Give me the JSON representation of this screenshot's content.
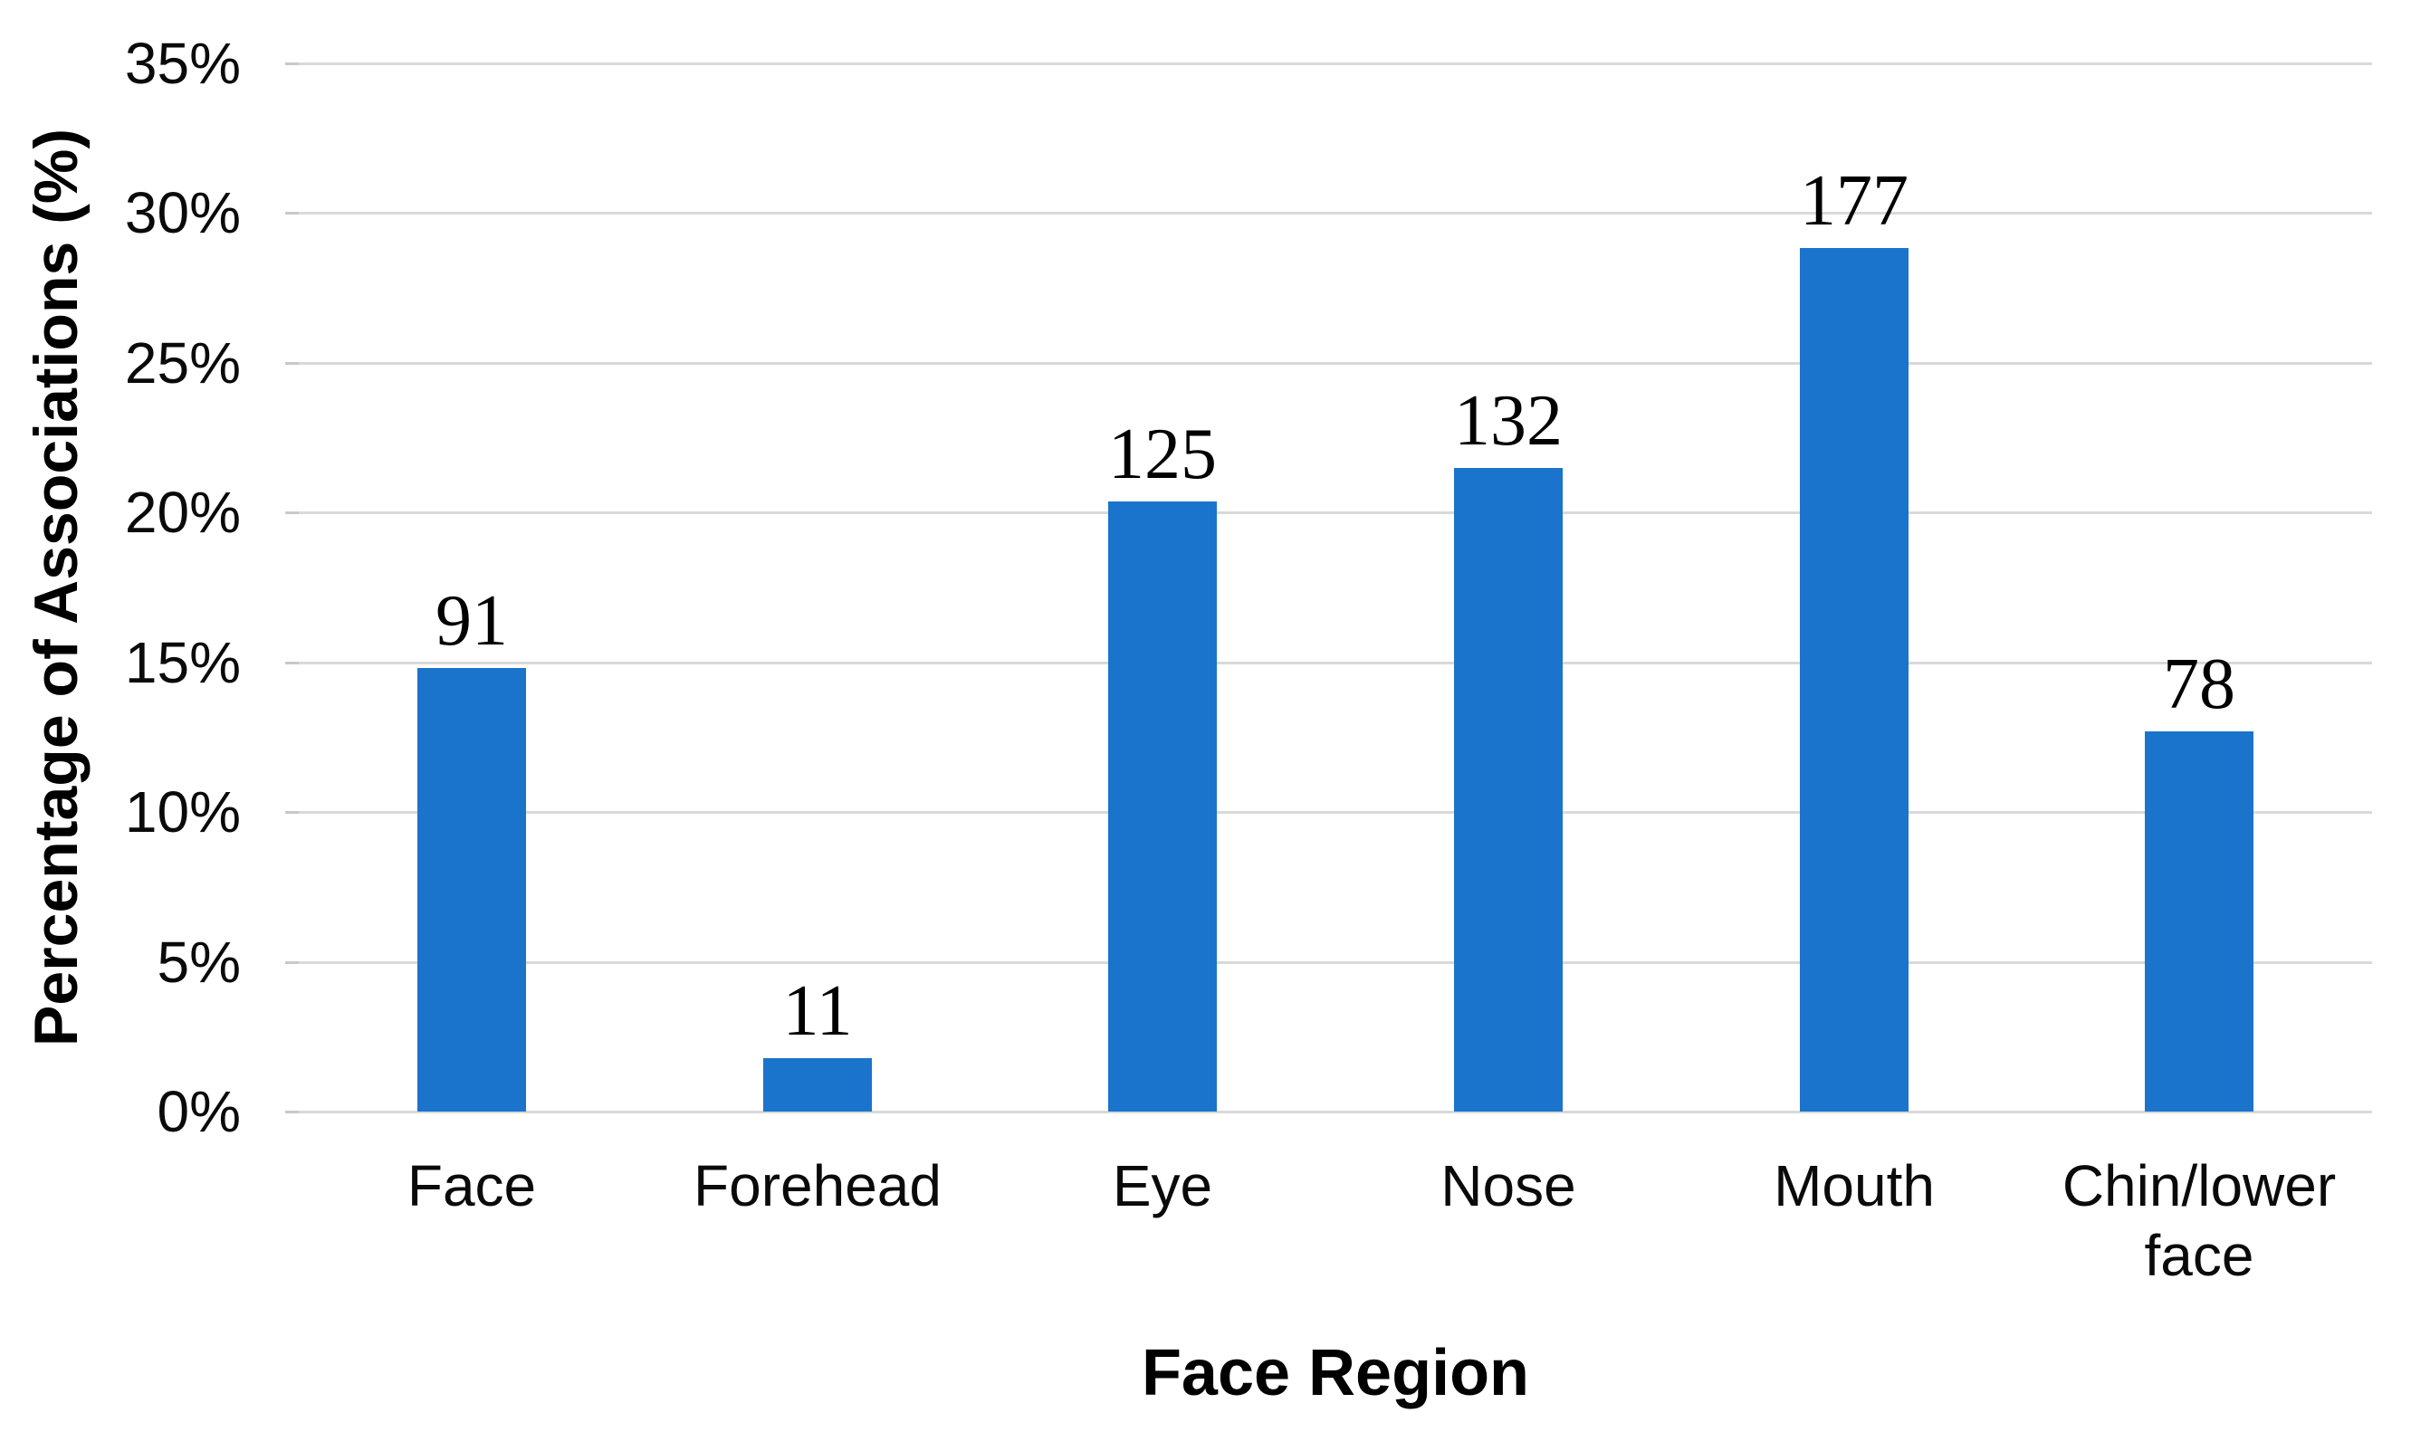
{
  "chart_data": {
    "type": "bar",
    "title": "",
    "categories": [
      "Face",
      "Forehead",
      "Eye",
      "Nose",
      "Mouth",
      "Chin/lower face"
    ],
    "categories_display": [
      "Face",
      "Forehead",
      "Eye",
      "Nose",
      "Mouth",
      "Chin/lower\nface"
    ],
    "values": [
      91,
      11,
      125,
      132,
      177,
      78
    ],
    "data_labels": [
      "91",
      "11",
      "125",
      "132",
      "177",
      "78"
    ],
    "percentages": [
      14.82,
      1.79,
      20.36,
      21.5,
      28.83,
      12.7
    ],
    "xlabel": "Face Region",
    "ylabel": "Percentage of Associations (%)",
    "ylim": [
      0,
      35
    ],
    "ytick_step": 5,
    "ytick_labels": [
      "0%",
      "5%",
      "10%",
      "15%",
      "20%",
      "25%",
      "30%",
      "35%"
    ],
    "grid": "horizontal",
    "legend_position": "none",
    "bar_color": "#1b74cb",
    "gridline_color": "#d9d9d9",
    "tick_color": "#c9c9c9",
    "text_color": "#0a0a0a"
  }
}
